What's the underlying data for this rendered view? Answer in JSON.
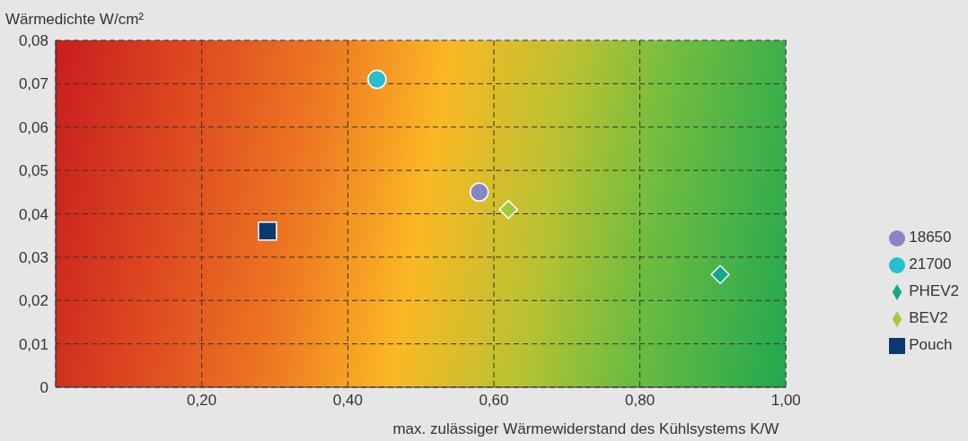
{
  "chart_data": {
    "type": "scatter",
    "ylabel": "Wärmedichte W/cm²",
    "xlabel": "max. zulässiger Wärmewiderstand des Kühlsystems K/W",
    "xlim": [
      0,
      1
    ],
    "xticks": [
      {
        "value": 0.2,
        "label": "0,20"
      },
      {
        "value": 0.4,
        "label": "0,40"
      },
      {
        "value": 0.6,
        "label": "0,60"
      },
      {
        "value": 0.8,
        "label": "0,80"
      },
      {
        "value": 1,
        "label": "1,00"
      }
    ],
    "ylim": [
      0,
      0.08
    ],
    "yticks": [
      {
        "value": 0,
        "label": "0"
      },
      {
        "value": 0.01,
        "label": "0,01"
      },
      {
        "value": 0.02,
        "label": "0,02"
      },
      {
        "value": 0.03,
        "label": "0,03"
      },
      {
        "value": 0.04,
        "label": "0,04"
      },
      {
        "value": 0.05,
        "label": "0,05"
      },
      {
        "value": 0.06,
        "label": "0,06"
      },
      {
        "value": 0.07,
        "label": "0,07"
      },
      {
        "value": 0.08,
        "label": "0,08"
      }
    ],
    "grid": true,
    "legend": "right",
    "series": [
      {
        "name": "18650",
        "color": "#8b84c4",
        "marker": "circle",
        "x": [
          0.58
        ],
        "values": [
          0.045
        ]
      },
      {
        "name": "21700",
        "color": "#27bfd0",
        "marker": "circle",
        "x": [
          0.44
        ],
        "values": [
          0.071
        ]
      },
      {
        "name": "PHEV2",
        "color": "#12a88a",
        "marker": "diamond",
        "x": [
          0.91
        ],
        "values": [
          0.026
        ]
      },
      {
        "name": "BEV2",
        "color": "#9ccc3c",
        "marker": "diamond",
        "x": [
          0.62
        ],
        "values": [
          0.041
        ]
      },
      {
        "name": "Pouch",
        "color": "#0a3a6e",
        "marker": "square",
        "x": [
          0.29
        ],
        "values": [
          0.036
        ]
      }
    ]
  }
}
